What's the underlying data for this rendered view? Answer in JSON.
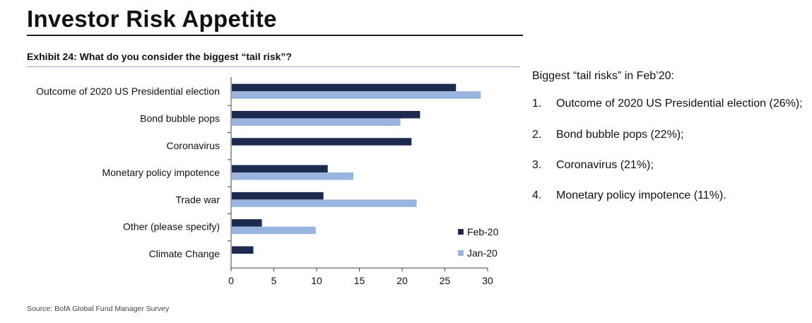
{
  "header": {
    "title": "Investor Risk Appetite",
    "exhibit": "Exhibit 24: What do you consider the biggest “tail risk”?"
  },
  "source": "Source: BofA Global Fund Manager Survey",
  "side_panel": {
    "title": "Biggest “tail risks” in Feb’20:",
    "items": [
      {
        "num": "1.",
        "text": "Outcome of 2020 US Presidential election (26%);"
      },
      {
        "num": "2.",
        "text": "Bond bubble pops (22%);"
      },
      {
        "num": "3.",
        "text": "Coronavirus (21%);"
      },
      {
        "num": "4.",
        "text": "Monetary policy impotence (11%)."
      }
    ]
  },
  "colors": {
    "feb": "#1b2a4e",
    "jan": "#98b4df",
    "axis": "#444444"
  },
  "chart_data": {
    "type": "bar",
    "orientation": "horizontal",
    "categories": [
      "Outcome of 2020 US Presidential election",
      "Bond bubble pops",
      "Coronavirus",
      "Monetary policy impotence",
      "Trade war",
      "Other (please specify)",
      "Climate Change"
    ],
    "series": [
      {
        "name": "Feb-20",
        "values": [
          26.3,
          22.1,
          21.1,
          11.3,
          10.8,
          3.6,
          2.6
        ]
      },
      {
        "name": "Jan-20",
        "values": [
          29.2,
          19.8,
          null,
          14.3,
          21.7,
          9.9,
          null
        ]
      }
    ],
    "xlim": [
      0,
      30
    ],
    "xticks": [
      0,
      5,
      10,
      15,
      20,
      25,
      30
    ],
    "legend_position": "bottom-right",
    "grid": false
  }
}
